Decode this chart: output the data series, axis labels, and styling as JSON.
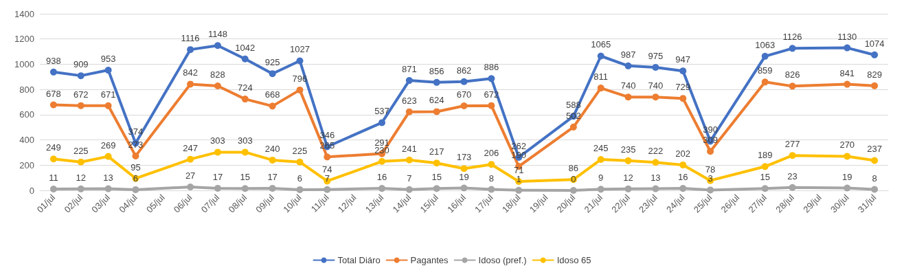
{
  "chart_data": {
    "type": "line",
    "categories": [
      "01/jul",
      "02/jul",
      "03/jul",
      "04/jul",
      "05/jul",
      "06/jul",
      "07/jul",
      "08/jul",
      "09/jul",
      "10/jul",
      "11/jul",
      "12/jul",
      "13/jul",
      "14/jul",
      "15/jul",
      "16/jul",
      "17/jul",
      "18/jul",
      "19/jul",
      "20/jul",
      "21/jul",
      "22/jul",
      "23/jul",
      "24/jul",
      "25/jul",
      "26/jul",
      "27/jul",
      "28/jul",
      "29/jul",
      "30/jul",
      "31/jul"
    ],
    "series": [
      {
        "name": "Total Diáro",
        "color": "#4472c4",
        "values": [
          938,
          909,
          953,
          374,
          null,
          1116,
          1148,
          1042,
          925,
          1027,
          346,
          null,
          537,
          871,
          856,
          862,
          886,
          262,
          null,
          588,
          1065,
          987,
          975,
          947,
          390,
          null,
          1063,
          1126,
          null,
          1130,
          1074
        ]
      },
      {
        "name": "Pagantes",
        "color": "#ed7d31",
        "values": [
          678,
          672,
          671,
          273,
          null,
          842,
          828,
          724,
          668,
          796,
          265,
          null,
          291,
          623,
          624,
          670,
          672,
          190,
          null,
          502,
          811,
          740,
          740,
          729,
          309,
          null,
          859,
          826,
          null,
          841,
          829
        ]
      },
      {
        "name": "Idoso (pref.)",
        "color": "#a5a5a5",
        "values": [
          11,
          12,
          13,
          6,
          null,
          27,
          17,
          15,
          17,
          6,
          7,
          null,
          16,
          7,
          15,
          19,
          8,
          1,
          null,
          0,
          9,
          12,
          13,
          16,
          3,
          null,
          15,
          23,
          null,
          19,
          8
        ]
      },
      {
        "name": "Idoso 65",
        "color": "#ffc000",
        "values": [
          249,
          225,
          269,
          95,
          null,
          247,
          303,
          303,
          240,
          225,
          74,
          null,
          230,
          241,
          217,
          173,
          206,
          71,
          null,
          86,
          245,
          235,
          222,
          202,
          78,
          null,
          189,
          277,
          null,
          270,
          237
        ]
      }
    ],
    "ylim": [
      0,
      1400
    ],
    "yticks": [
      0,
      200,
      400,
      600,
      800,
      1000,
      1200,
      1400
    ],
    "grid": "y",
    "legend": "bottom",
    "marker": "circle",
    "line_style": "solid",
    "data_labels": true
  }
}
